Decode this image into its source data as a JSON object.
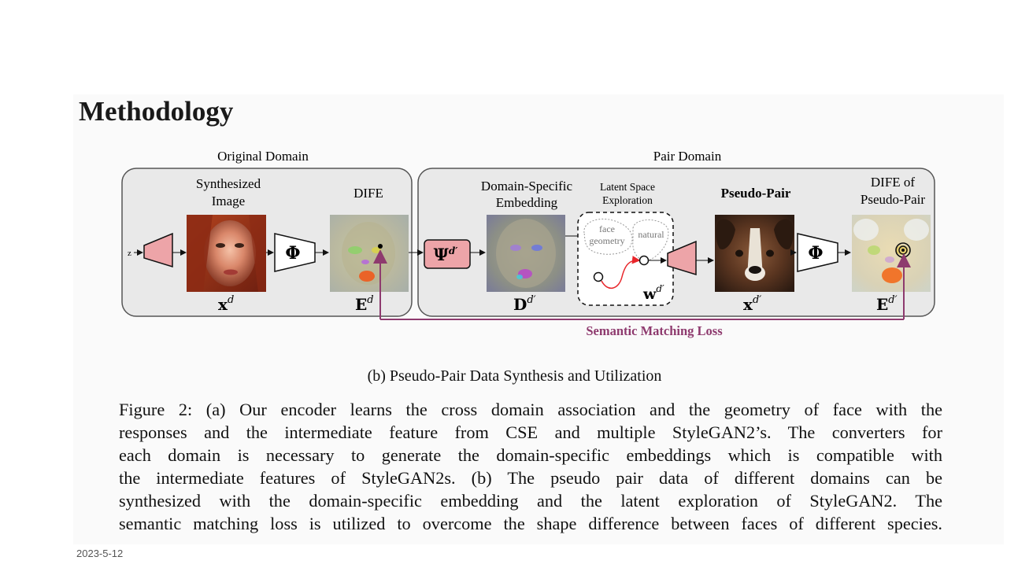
{
  "slide": {
    "title": "Methodology",
    "date": "2023-5-12"
  },
  "figure": {
    "domains": {
      "original": "Original Domain",
      "pair": "Pair Domain"
    },
    "labels": {
      "synthesized_l1": "Synthesized",
      "synthesized_l2": "Image",
      "dife": "DIFE",
      "domain_specific_l1": "Domain-Specific",
      "domain_specific_l2": "Embedding",
      "latent_l1": "Latent Space",
      "latent_l2": "Exploration",
      "pseudo_pair": "Pseudo-Pair",
      "dife_pp_l1": "DIFE of",
      "dife_pp_l2": "Pseudo-Pair",
      "z": "z",
      "phi": "Φ",
      "psi": "Ψ",
      "face_l1": "face",
      "face_l2": "geometry",
      "natural": "natural",
      "loss": "Semantic Matching Loss"
    },
    "math": {
      "x_base": "x",
      "x_sup": "d",
      "e_base": "E",
      "e_sup": "d",
      "d_base": "D",
      "d_sup": "d′",
      "w_base": "w",
      "w_sup": "d′",
      "x2_base": "x",
      "x2_sup": "d′",
      "e2_base": "E",
      "e2_sup": "d′",
      "psi_sup": "d′"
    },
    "colors": {
      "loss_arrow": "#8e3a6e",
      "encoder_fill": "#eda4a8",
      "path_red": "#e8262b"
    },
    "subcaption": "(b) Pseudo-Pair Data Synthesis and Utilization"
  },
  "caption": {
    "lines": [
      "Figure 2: (a) Our encoder learns the cross domain association and the geometry of face with the",
      "responses and the intermediate feature from CSE and multiple StyleGAN2’s. The converters for",
      "each domain is necessary to generate the domain-specific embeddings which is compatible with",
      "the intermediate features of StyleGAN2s. (b) The pseudo pair data of different domains can be",
      "synthesized with the domain-specific embedding and the latent exploration of StyleGAN2. The",
      "semantic matching loss is utilized to overcome the shape difference between faces of different species."
    ]
  }
}
